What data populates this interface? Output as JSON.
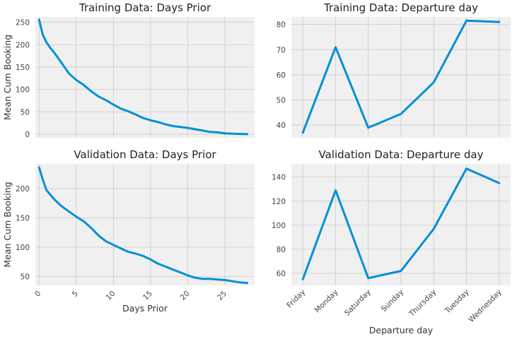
{
  "figure": {
    "background": "#ffffff",
    "panel_background": "#f0f0f0",
    "line_color": "#008fd5",
    "grid_color": "#cbcbcb"
  },
  "chart_data": [
    {
      "id": "train_days",
      "type": "line",
      "title": "Training Data: Days Prior",
      "xlabel": "",
      "ylabel": "Mean Cum Booking",
      "xlim": [
        -0.5,
        29
      ],
      "ylim": [
        -8,
        262
      ],
      "yticks": [
        0,
        50,
        100,
        150,
        200,
        250
      ],
      "xticks": [],
      "x": [
        0,
        0.5,
        1,
        1.5,
        2,
        3,
        4,
        5,
        6,
        7,
        8,
        9,
        10,
        11,
        12,
        13,
        14,
        15,
        16,
        17,
        18,
        19,
        20,
        21,
        22,
        23,
        24,
        25,
        26,
        27,
        28
      ],
      "y": [
        256,
        222,
        205,
        193,
        183,
        160,
        136,
        121,
        110,
        96,
        84,
        76,
        66,
        57,
        51,
        44,
        36,
        31,
        27,
        22,
        18,
        16,
        14,
        11,
        8,
        5,
        4,
        2,
        1,
        0.5,
        0
      ]
    },
    {
      "id": "train_dep",
      "type": "line",
      "title": "Training Data: Departure day",
      "xlabel": "",
      "ylabel": "",
      "categories": [
        "Friday",
        "Monday",
        "Saturday",
        "Sunday",
        "Thursday",
        "Tuesday",
        "Wednesday"
      ],
      "show_category_labels": false,
      "ylim": [
        35,
        83
      ],
      "yticks": [
        40,
        50,
        60,
        70,
        80
      ],
      "y": [
        37,
        71,
        39,
        44.5,
        57,
        81.5,
        81
      ]
    },
    {
      "id": "val_days",
      "type": "line",
      "title": "Validation Data: Days Prior",
      "xlabel": "Days Prior",
      "ylabel": "Mean Cum Booking",
      "xlim": [
        -0.5,
        29
      ],
      "ylim": [
        35,
        242
      ],
      "yticks": [
        50,
        100,
        150,
        200
      ],
      "xticks": [
        0,
        5,
        10,
        15,
        20,
        25
      ],
      "x": [
        0,
        0.5,
        1,
        2,
        3,
        4,
        5,
        6,
        7,
        8,
        9,
        10,
        11,
        12,
        13,
        14,
        15,
        16,
        17,
        18,
        19,
        20,
        21,
        22,
        23,
        24,
        25,
        26,
        27,
        28
      ],
      "y": [
        236,
        215,
        197,
        182,
        170,
        161,
        152,
        144,
        133,
        120,
        110,
        104,
        98,
        92,
        89,
        85,
        79,
        72,
        67,
        62,
        57,
        52,
        48,
        46,
        46,
        45,
        44,
        42,
        40,
        39
      ]
    },
    {
      "id": "val_dep",
      "type": "line",
      "title": "Validation Data: Departure day",
      "xlabel": "Departure day",
      "ylabel": "",
      "categories": [
        "Friday",
        "Monday",
        "Saturday",
        "Sunday",
        "Thursday",
        "Tuesday",
        "Wednesday"
      ],
      "show_category_labels": true,
      "ylim": [
        50,
        151
      ],
      "yticks": [
        60,
        80,
        100,
        120,
        140
      ],
      "y": [
        55,
        129,
        56,
        62,
        97,
        147,
        135
      ]
    }
  ]
}
